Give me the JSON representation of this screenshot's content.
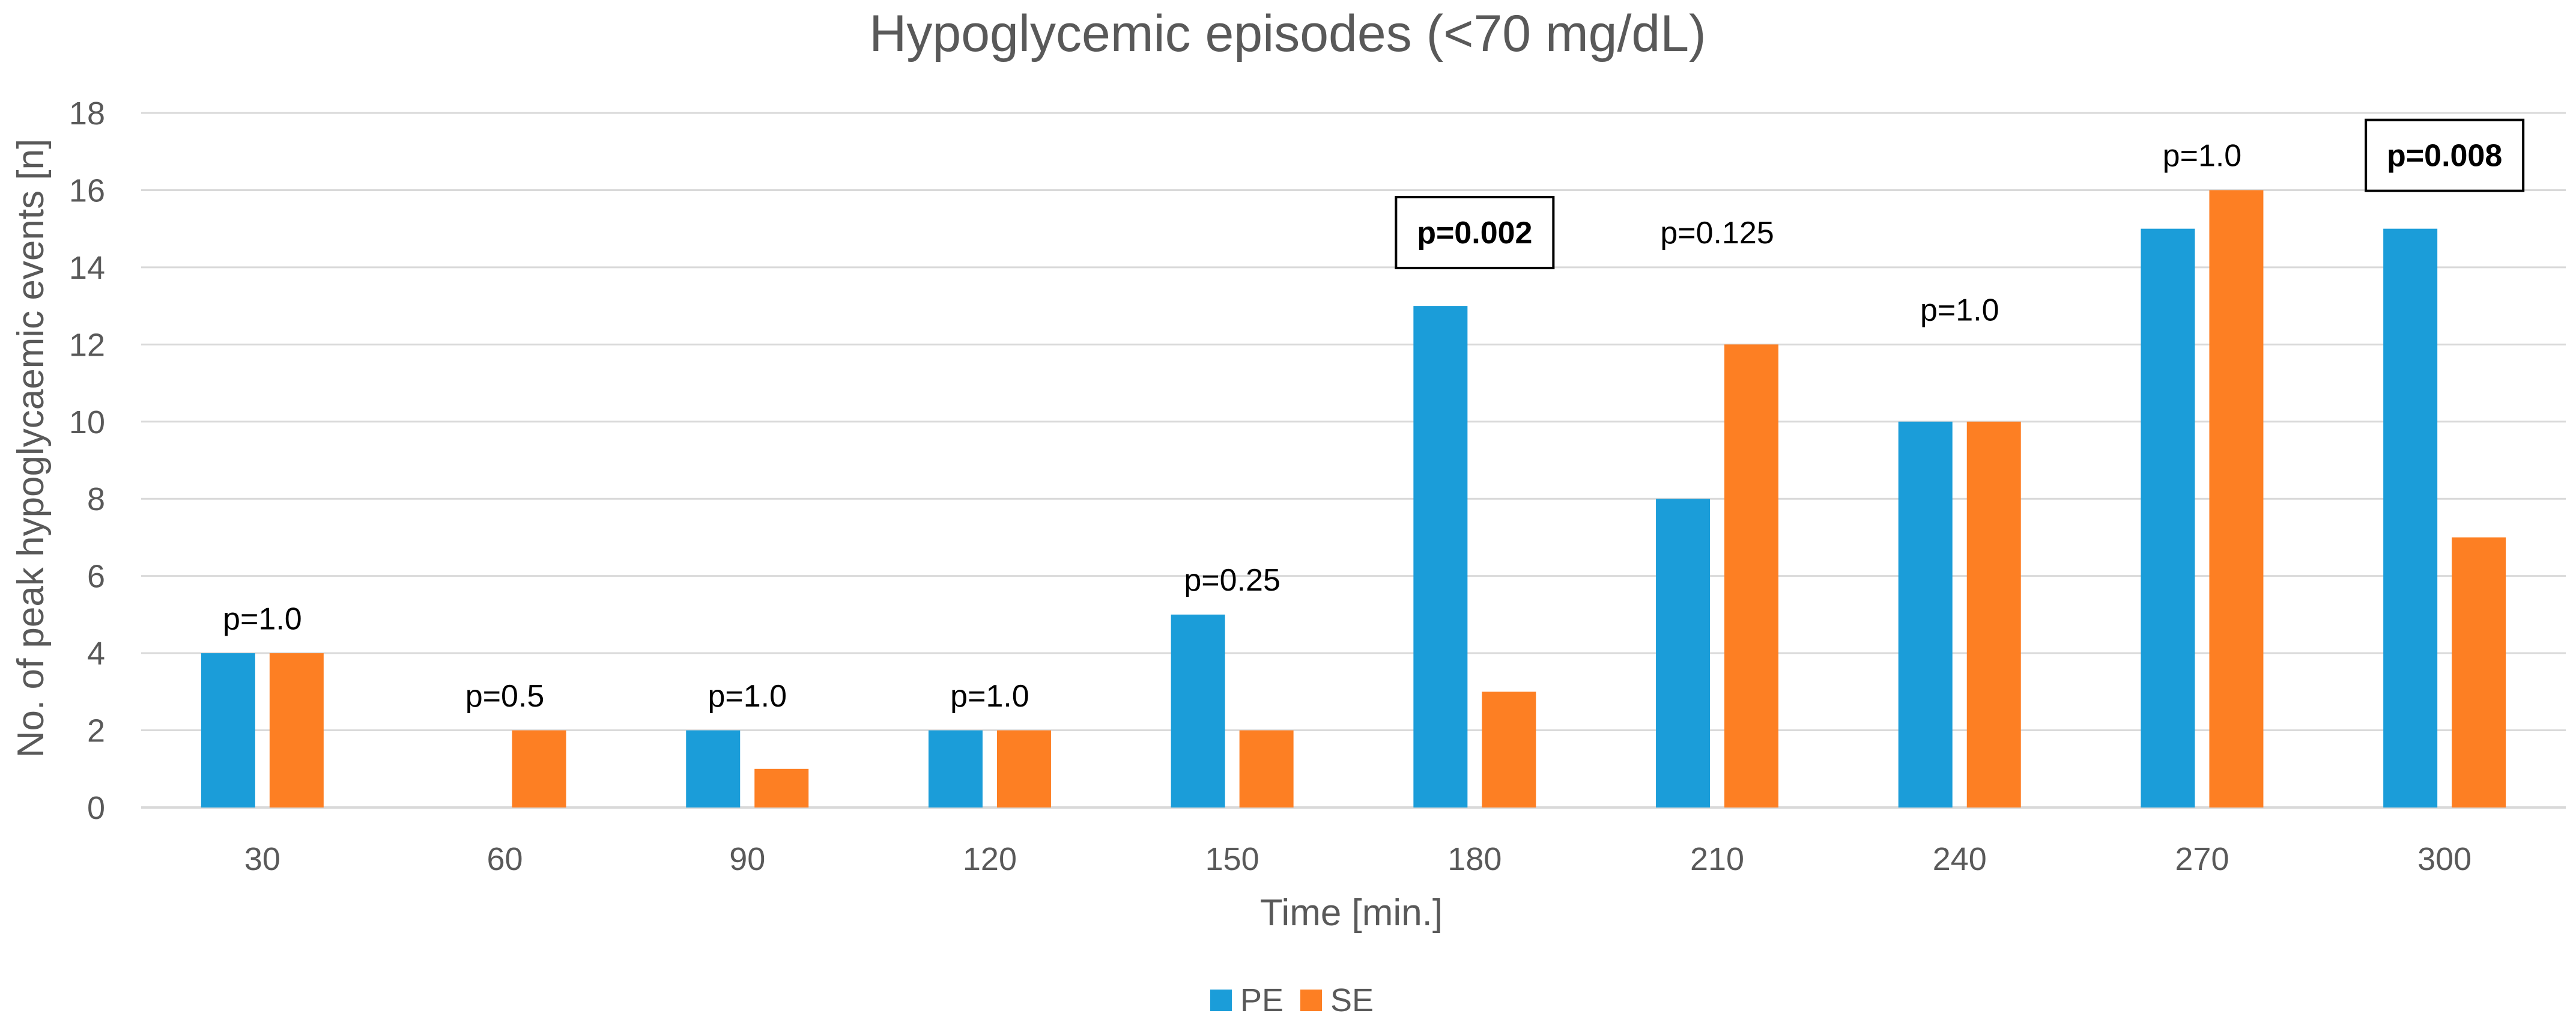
{
  "chart_data": {
    "type": "bar",
    "title": "Hypoglycemic episodes (<70 mg/dL)",
    "xlabel": "Time [min.]",
    "ylabel": "No. of peak hypoglycaemic events [n]",
    "ylim": [
      0,
      18
    ],
    "ytick_step": 2,
    "categories": [
      "30",
      "60",
      "90",
      "120",
      "150",
      "180",
      "210",
      "240",
      "270",
      "300"
    ],
    "series": [
      {
        "name": "PE",
        "color": "#1b9dd9",
        "values": [
          4,
          0,
          2,
          2,
          5,
          13,
          8,
          10,
          15,
          15
        ]
      },
      {
        "name": "SE",
        "color": "#fd7f23",
        "values": [
          4,
          2,
          1,
          2,
          2,
          3,
          12,
          10,
          16,
          7
        ]
      }
    ],
    "annotations": [
      {
        "category": "30",
        "text": "p=1.0",
        "value": 4.9,
        "bold": false
      },
      {
        "category": "60",
        "text": "p=0.5",
        "value": 2.9,
        "bold": false
      },
      {
        "category": "90",
        "text": "p=1.0",
        "value": 2.9,
        "bold": false
      },
      {
        "category": "120",
        "text": "p=1.0",
        "value": 2.9,
        "bold": false
      },
      {
        "category": "150",
        "text": "p=0.25",
        "value": 5.9,
        "bold": false
      },
      {
        "category": "180",
        "text": "p=0.002",
        "value": 14.9,
        "bold": true
      },
      {
        "category": "210",
        "text": "p=0.125",
        "value": 14.9,
        "bold": false
      },
      {
        "category": "240",
        "text": "p=1.0",
        "value": 12.9,
        "bold": false
      },
      {
        "category": "270",
        "text": "p=1.0",
        "value": 16.9,
        "bold": false
      },
      {
        "category": "300",
        "text": "p=0.008",
        "value": 16.9,
        "bold": true
      }
    ],
    "legend": "bottom-center",
    "grid": true
  }
}
